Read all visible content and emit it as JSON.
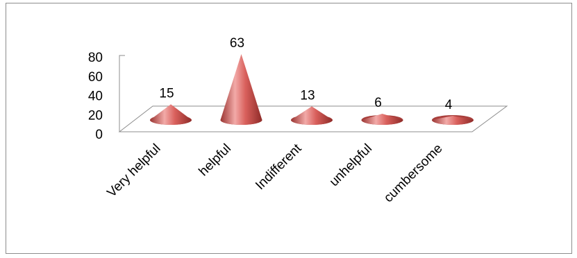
{
  "chart_data": {
    "type": "bar",
    "style": "3d-cone",
    "categories": [
      "Very helpful",
      "helpful",
      "Indifferent",
      "unhelpful",
      "cumbersome"
    ],
    "values": [
      15,
      63,
      13,
      6,
      4
    ],
    "data_labels": [
      "15",
      "63",
      "13",
      "6",
      "4"
    ],
    "ylim": [
      0,
      80
    ],
    "yticks": [
      "0",
      "20",
      "40",
      "60",
      "80"
    ],
    "grid": false,
    "legend": "none",
    "colors": {
      "cone": "#c0504d",
      "cone_light": "#f0a8a6",
      "cone_dark": "#8e2b28",
      "floor": "#7f7f7f"
    }
  }
}
